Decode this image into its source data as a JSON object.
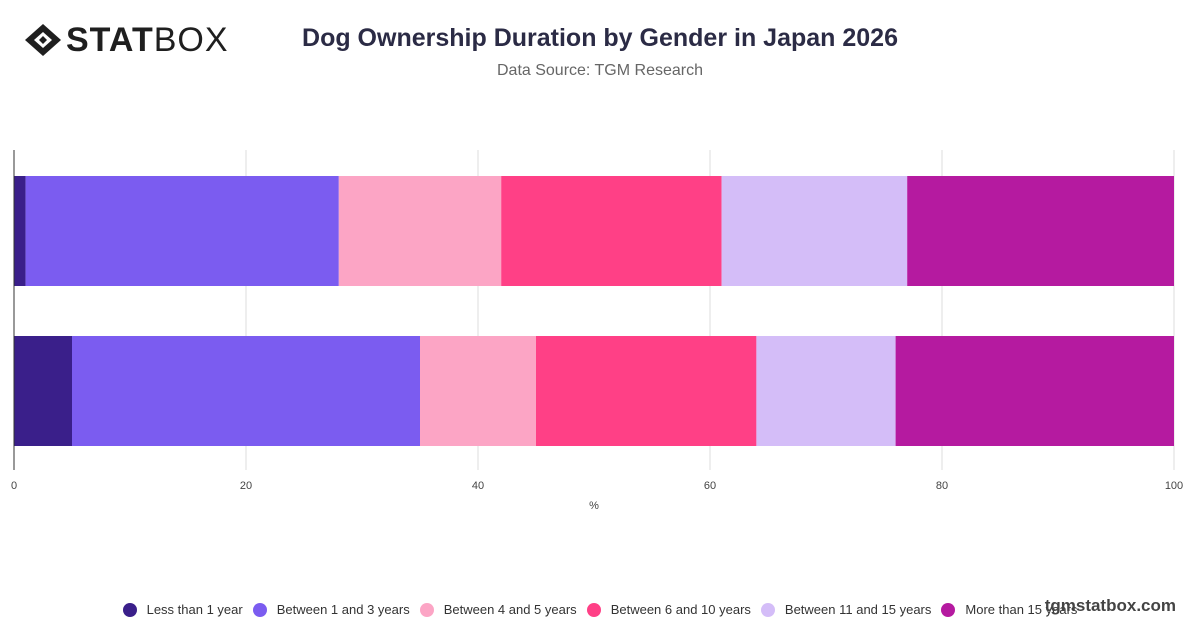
{
  "brand": {
    "bold": "STAT",
    "light": "BOX"
  },
  "watermark": "tgmstatbox.com",
  "chart_data": {
    "type": "bar",
    "orientation": "horizontal",
    "stacked": true,
    "title": "Dog Ownership Duration by Gender in Japan 2026",
    "subtitle": "Data Source: TGM Research",
    "xlabel": "%",
    "ylabel": "",
    "xlim": [
      0,
      100
    ],
    "xticks": [
      0,
      20,
      40,
      60,
      80,
      100
    ],
    "grid": true,
    "legend_position": "bottom",
    "categories": [
      "",
      ""
    ],
    "series": [
      {
        "name": "Less than 1 year",
        "color": "#3a1f8a",
        "values": [
          1,
          5
        ]
      },
      {
        "name": "Between 1 and 3 years",
        "color": "#7b5cf0",
        "values": [
          27,
          30
        ]
      },
      {
        "name": "Between 4 and 5 years",
        "color": "#fca5c5",
        "values": [
          14,
          10
        ]
      },
      {
        "name": "Between 6 and 10 years",
        "color": "#ff4086",
        "values": [
          19,
          19
        ]
      },
      {
        "name": "Between 11 and 15 years",
        "color": "#d4bdf8",
        "values": [
          16,
          12
        ]
      },
      {
        "name": "More than 15 years",
        "color": "#b51aa0",
        "values": [
          23,
          24
        ]
      }
    ]
  }
}
